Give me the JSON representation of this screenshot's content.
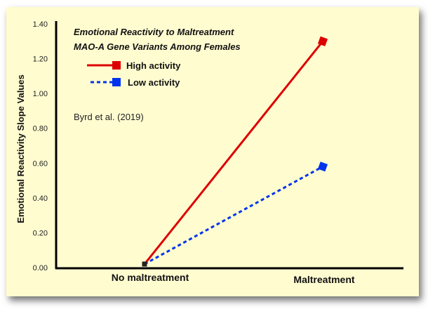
{
  "chart_data": {
    "type": "line",
    "title": "Emotional Reactivity to Maltreatment",
    "subtitle": "MAO-A Gene Variants Among Females",
    "annotation": "Byrd et al. (2019)",
    "xlabel": "",
    "ylabel": "Emotional Reactivity Slope Values",
    "categories": [
      "No maltreatment",
      "Maltreatment"
    ],
    "ylim": [
      0,
      1.4
    ],
    "yticks": [
      "0.00",
      "0.20",
      "0.40",
      "0.60",
      "0.80",
      "1.00",
      "1.20",
      "1.40"
    ],
    "grid": false,
    "legend_placement": "top-left",
    "background": "#fffcd0",
    "series": [
      {
        "name": "High activity",
        "values": [
          0.02,
          1.3
        ],
        "color": "#dd0000",
        "style": "solid"
      },
      {
        "name": "Low activity",
        "values": [
          0.02,
          0.58
        ],
        "color": "#0033ee",
        "style": "dashed"
      }
    ]
  }
}
